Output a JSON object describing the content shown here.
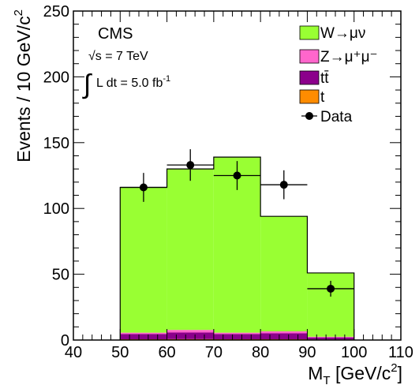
{
  "chart_data": {
    "type": "bar",
    "stacked": true,
    "bins": [
      [
        50,
        60
      ],
      [
        60,
        70
      ],
      [
        70,
        80
      ],
      [
        80,
        90
      ],
      [
        90,
        100
      ]
    ],
    "xlim": [
      40,
      110
    ],
    "ylim": [
      0,
      250
    ],
    "x_ticks": [
      "40",
      "50",
      "60",
      "70",
      "80",
      "90",
      "100",
      "110"
    ],
    "y_ticks": [
      "0",
      "50",
      "100",
      "150",
      "200",
      "250"
    ],
    "xlabel": {
      "main": "M",
      "sub": "T",
      "rest": " [GeV/c",
      "sup": "2",
      "close": "]"
    },
    "ylabel": {
      "main": "Events / 10 GeV/c",
      "sup": "2"
    },
    "annotations": {
      "experiment": "CMS",
      "energy": "√s = 7 TeV",
      "integral": "∫",
      "lumi": "L dt = 5.0 fb",
      "lumi_sup": "-1"
    },
    "series": [
      {
        "name": "t",
        "color": "#ff8c00",
        "values": [
          0.6,
          0.7,
          0.6,
          0.6,
          0.4
        ]
      },
      {
        "name": "tt̄",
        "color": "#8b008b",
        "values": [
          4.0,
          5.0,
          4.0,
          4.5,
          1.6
        ]
      },
      {
        "name": "Z→μ⁺μ⁻",
        "color": "#ff66cc",
        "values": [
          1.0,
          2.0,
          1.0,
          1.5,
          0.5
        ]
      },
      {
        "name": "W→μν",
        "color": "#99ff33",
        "values": [
          110.4,
          122.3,
          133.4,
          87.4,
          48.5
        ]
      }
    ],
    "data": {
      "name": "Data",
      "x": [
        55,
        65,
        75,
        85,
        95
      ],
      "y": [
        116,
        133,
        125,
        118,
        39
      ],
      "yerr": [
        11,
        12,
        11,
        11,
        6
      ],
      "xerr": [
        5,
        5,
        5,
        5,
        5
      ]
    },
    "legend": {
      "position": "top-right",
      "entries": [
        "W→μν",
        "Z→μ⁺μ⁻",
        "tt̄",
        "t",
        "Data"
      ]
    }
  }
}
